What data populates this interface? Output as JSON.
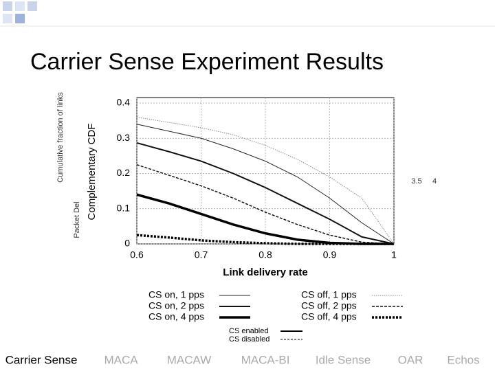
{
  "slide_title": "Carrier Sense Experiment Results",
  "nav": [
    "Carrier Sense",
    "MACA",
    "MACAW",
    "MACA-BI",
    "Idle Sense",
    "OAR",
    "Echos"
  ],
  "underlay": {
    "y_label": "Cumulative fraction of links",
    "y_label_2": "Packet Del",
    "tick_labels": [
      "3.5",
      "4"
    ],
    "legend": [
      "CS enabled",
      "CS disabled"
    ]
  },
  "chart_data": {
    "type": "line",
    "x_label": "Link delivery rate",
    "y_label": "Complementary CDF",
    "x": [
      0.6,
      0.65,
      0.7,
      0.75,
      0.8,
      0.85,
      0.9,
      0.95,
      1
    ],
    "xlim": [
      0.6,
      1
    ],
    "xticks": [
      0.6,
      0.7,
      0.8,
      0.9,
      1
    ],
    "ylim": [
      0,
      0.4
    ],
    "yticks": [
      0,
      0.1,
      0.2,
      0.3,
      0.4
    ],
    "grid": true,
    "series": [
      {
        "name": "CS on, 1 pps",
        "color": "#222222",
        "style": "solid",
        "width": 1,
        "values": [
          0.34,
          0.32,
          0.3,
          0.27,
          0.235,
          0.19,
          0.13,
          0.06,
          0
        ]
      },
      {
        "name": "CS on, 2 pps",
        "color": "#111111",
        "style": "solid",
        "width": 2,
        "values": [
          0.287,
          0.262,
          0.235,
          0.2,
          0.16,
          0.115,
          0.07,
          0.02,
          0
        ]
      },
      {
        "name": "CS on, 4 pps",
        "color": "#000000",
        "style": "solid",
        "width": 3.5,
        "values": [
          0.14,
          0.115,
          0.085,
          0.055,
          0.03,
          0.012,
          0.003,
          0,
          0
        ]
      },
      {
        "name": "CS off, 1 pps",
        "color": "#888888",
        "style": "dotted",
        "width": 1,
        "values": [
          0.36,
          0.345,
          0.33,
          0.31,
          0.28,
          0.24,
          0.19,
          0.13,
          0
        ]
      },
      {
        "name": "CS off, 2 pps",
        "color": "#111111",
        "style": "dashed",
        "width": 1.5,
        "values": [
          0.225,
          0.195,
          0.165,
          0.13,
          0.09,
          0.055,
          0.025,
          0.005,
          0
        ]
      },
      {
        "name": "CS off, 4 pps",
        "color": "#000000",
        "style": "dotted",
        "width": 3.5,
        "values": [
          0.025,
          0.018,
          0.01,
          0.005,
          0.002,
          0,
          0,
          0,
          0
        ]
      }
    ]
  }
}
